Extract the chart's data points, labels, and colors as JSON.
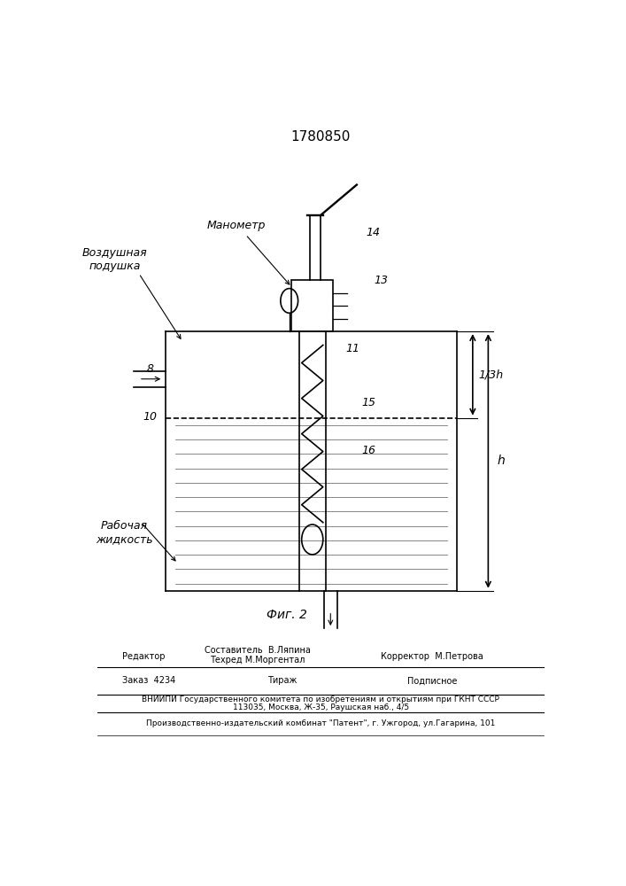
{
  "patent_number": "1780850",
  "fig_label": "Фиг. 2",
  "bg_color": "#ffffff",
  "line_color": "#000000",
  "labels": {
    "vozdushnaya": "Воздушная\nподушка",
    "manometr": "Манометр",
    "rabochaya": "Рабочая\nжидкость"
  },
  "footer": {
    "sostavitel": "Составитель  В.Ляпина",
    "tehred": "Техред М.Моргентал",
    "korrektor": "Корректор  М.Петрова",
    "redaktor": "Редактор",
    "zakaz": "Заказ  4234",
    "tirazh": "Тираж",
    "podpisnoe": "Подписное",
    "vniiipi": "ВНИИПИ Государственного комитета по изобретениям и открытиям при ГКНТ СССР",
    "address": "113035, Москва, Ж-35, Раушская наб., 4/5",
    "proizv": "Производственно-издательский комбинат \"Патент\", г. Ужгород, ул.Гагарина, 101"
  }
}
